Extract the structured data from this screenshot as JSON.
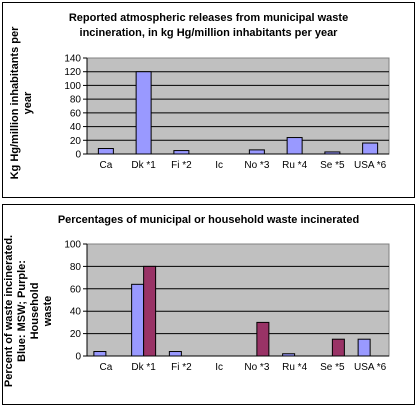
{
  "chart_data": [
    {
      "type": "bar",
      "title_line1": "Reported atmospheric releases from municipal waste",
      "title_line2": "incineration, in kg Hg/million inhabitants per year",
      "ylabel_line1": "Kg Hg/million inhabitants per",
      "ylabel_line2": "year",
      "categories": [
        "Ca",
        "Dk *1",
        "Fi *2",
        "Ic",
        "No *3",
        "Ru *4",
        "Se *5",
        "USA *6"
      ],
      "series": [
        {
          "values": [
            8,
            120,
            5,
            0,
            6,
            24,
            3,
            16
          ],
          "color": "#9999FF"
        }
      ],
      "yticks": [
        0,
        20,
        40,
        60,
        80,
        100,
        120,
        140
      ],
      "ylim": [
        0,
        140
      ],
      "grid": true,
      "plot_bg": "#C0C0C0"
    },
    {
      "type": "bar",
      "title": "Percentages of municipal or household waste incinerated",
      "ylabel_line1": "Percent of waste incinerated.",
      "ylabel_line2": "Blue: MSW; Purple: Household",
      "ylabel_line3": "waste",
      "categories": [
        "Ca",
        "Dk *1",
        "Fi *2",
        "Ic",
        "No *3",
        "Ru *4",
        "Se *5",
        "USA *6"
      ],
      "series": [
        {
          "values": [
            4,
            64,
            4,
            0,
            0,
            2,
            0,
            15
          ],
          "color": "#9999FF"
        },
        {
          "values": [
            0,
            80,
            0,
            0,
            30,
            0,
            15,
            0
          ],
          "color": "#993366"
        }
      ],
      "yticks": [
        0,
        20,
        40,
        60,
        80,
        100
      ],
      "ylim": [
        0,
        100
      ],
      "grid": true,
      "plot_bg": "#C0C0C0"
    }
  ]
}
